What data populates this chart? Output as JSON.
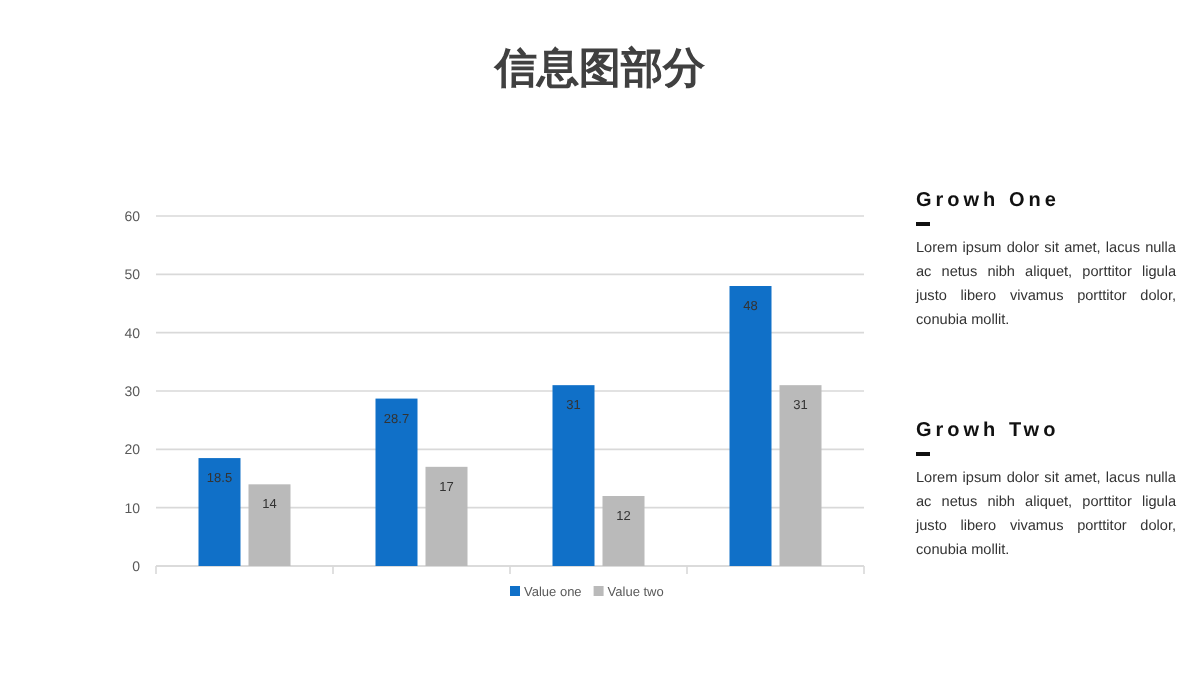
{
  "chart_data": [
    {
      "type": "bar",
      "title": "信息图部分",
      "categories": [
        null,
        null,
        null,
        null
      ],
      "series": [
        {
          "name": "Value one",
          "color": "#1070c8",
          "values": [
            18.5,
            28.7,
            31,
            48
          ]
        },
        {
          "name": "Value two",
          "color": "#bababa",
          "values": [
            14,
            17,
            12,
            31
          ]
        }
      ],
      "ylim": [
        0,
        60
      ],
      "yticks": [
        0,
        10,
        20,
        30,
        40,
        50,
        60
      ],
      "grid": "y",
      "legend": "bottom",
      "data_labels": true
    },
    {
      "type": "other",
      "annotations": [
        "Growh One",
        "Lorem ipsum dolor sit amet, lacus nulla ac netus nibh aliquet, porttitor ligula justo libero vivamus porttitor dolor, conubia mollit.",
        "Growh Two",
        "Lorem ipsum dolor sit amet, lacus nulla ac netus nibh aliquet, porttitor ligula justo libero vivamus porttitor dolor, conubia mollit."
      ]
    }
  ]
}
